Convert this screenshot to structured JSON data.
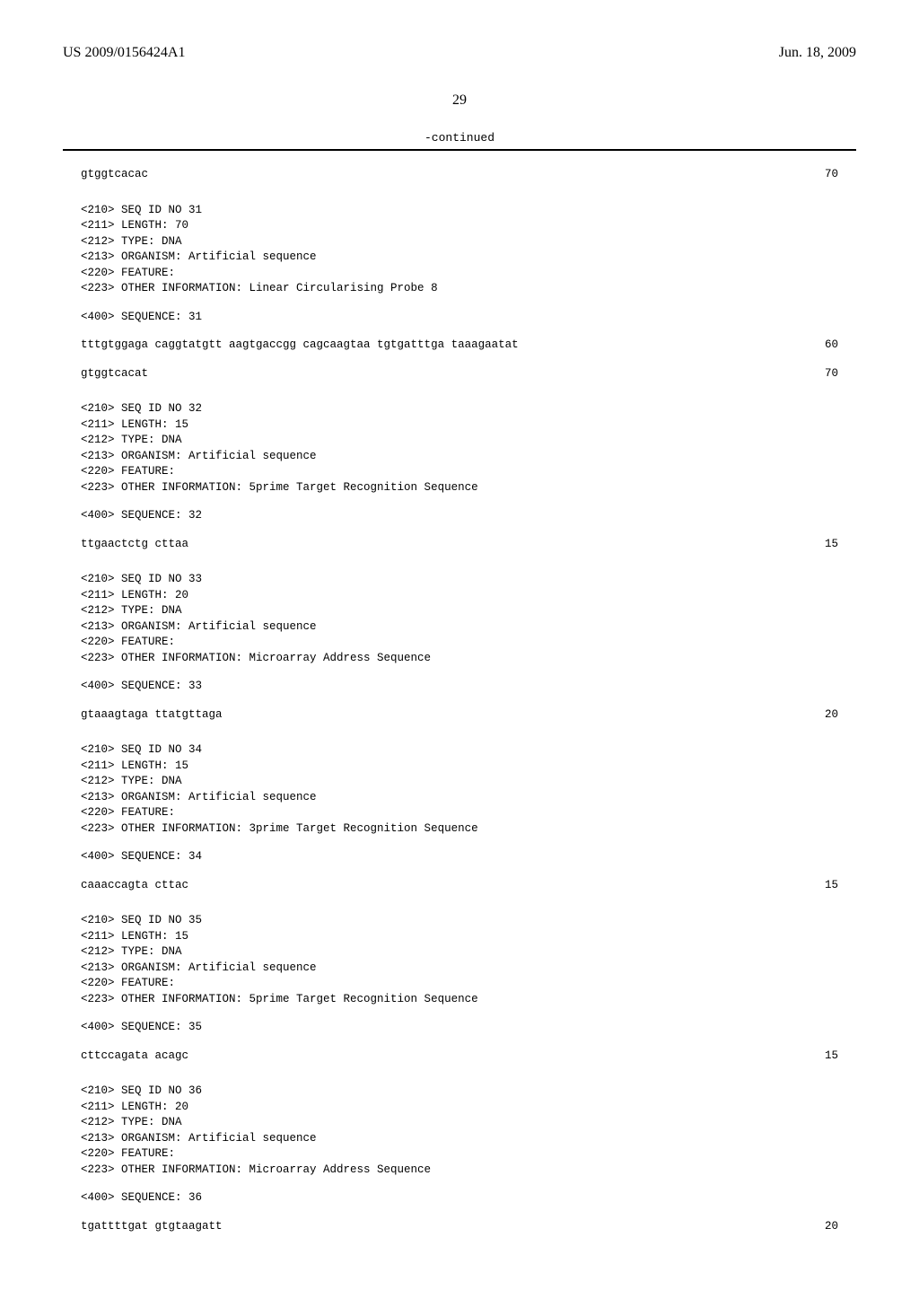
{
  "doc_number": "US 2009/0156424A1",
  "doc_date": "Jun. 18, 2009",
  "page_num": "29",
  "continued_label": "-continued",
  "entries": [
    {
      "meta": [],
      "sequence_label": null,
      "rows": [
        {
          "seq": "gtggtcacac",
          "count": "70"
        }
      ]
    },
    {
      "meta": [
        "<210> SEQ ID NO 31",
        "<211> LENGTH: 70",
        "<212> TYPE: DNA",
        "<213> ORGANISM: Artificial sequence",
        "<220> FEATURE:",
        "<223> OTHER INFORMATION: Linear Circularising Probe 8"
      ],
      "sequence_label": "<400> SEQUENCE: 31",
      "rows": [
        {
          "seq": "tttgtggaga caggtatgtt aagtgaccgg cagcaagtaa tgtgatttga taaagaatat",
          "count": "60"
        },
        {
          "seq": "gtggtcacat",
          "count": "70"
        }
      ]
    },
    {
      "meta": [
        "<210> SEQ ID NO 32",
        "<211> LENGTH: 15",
        "<212> TYPE: DNA",
        "<213> ORGANISM: Artificial sequence",
        "<220> FEATURE:",
        "<223> OTHER INFORMATION: 5prime Target Recognition Sequence"
      ],
      "sequence_label": "<400> SEQUENCE: 32",
      "rows": [
        {
          "seq": "ttgaactctg cttaa",
          "count": "15"
        }
      ]
    },
    {
      "meta": [
        "<210> SEQ ID NO 33",
        "<211> LENGTH: 20",
        "<212> TYPE: DNA",
        "<213> ORGANISM: Artificial sequence",
        "<220> FEATURE:",
        "<223> OTHER INFORMATION: Microarray Address Sequence"
      ],
      "sequence_label": "<400> SEQUENCE: 33",
      "rows": [
        {
          "seq": "gtaaagtaga ttatgttaga",
          "count": "20"
        }
      ]
    },
    {
      "meta": [
        "<210> SEQ ID NO 34",
        "<211> LENGTH: 15",
        "<212> TYPE: DNA",
        "<213> ORGANISM: Artificial sequence",
        "<220> FEATURE:",
        "<223> OTHER INFORMATION: 3prime Target Recognition Sequence"
      ],
      "sequence_label": "<400> SEQUENCE: 34",
      "rows": [
        {
          "seq": "caaaccagta cttac",
          "count": "15"
        }
      ]
    },
    {
      "meta": [
        "<210> SEQ ID NO 35",
        "<211> LENGTH: 15",
        "<212> TYPE: DNA",
        "<213> ORGANISM: Artificial sequence",
        "<220> FEATURE:",
        "<223> OTHER INFORMATION: 5prime Target Recognition Sequence"
      ],
      "sequence_label": "<400> SEQUENCE: 35",
      "rows": [
        {
          "seq": "cttccagata acagc",
          "count": "15"
        }
      ]
    },
    {
      "meta": [
        "<210> SEQ ID NO 36",
        "<211> LENGTH: 20",
        "<212> TYPE: DNA",
        "<213> ORGANISM: Artificial sequence",
        "<220> FEATURE:",
        "<223> OTHER INFORMATION: Microarray Address Sequence"
      ],
      "sequence_label": "<400> SEQUENCE: 36",
      "rows": [
        {
          "seq": "tgattttgat gtgtaagatt",
          "count": "20"
        }
      ]
    }
  ]
}
